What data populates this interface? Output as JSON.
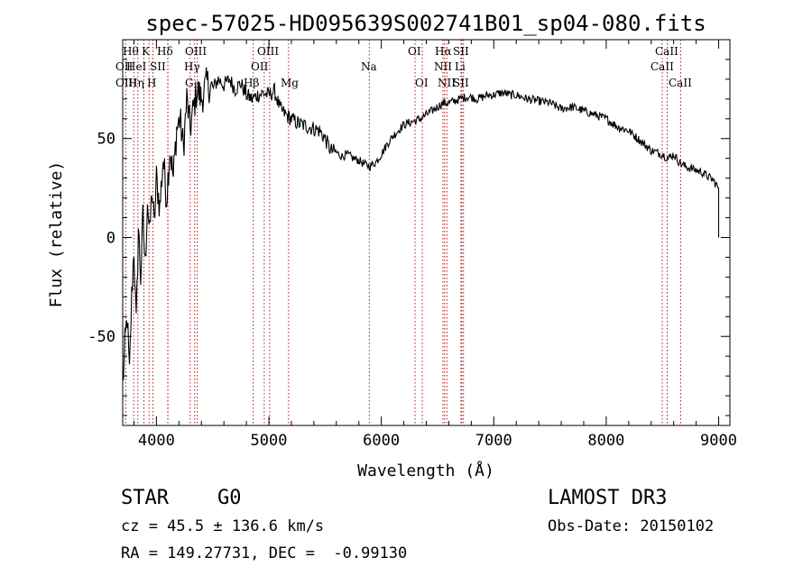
{
  "chart_data": {
    "type": "line",
    "title": "spec-57025-HD095639S002741B01_sp04-080.fits",
    "xlabel": "Wavelength (Å)",
    "ylabel": "Flux (relative)",
    "xlim": [
      3700,
      9100
    ],
    "ylim": [
      -95,
      100
    ],
    "x_ticks": [
      4000,
      5000,
      6000,
      7000,
      8000,
      9000
    ],
    "x_tick_labels": [
      "4000",
      "5000",
      "6000",
      "7000",
      "8000",
      "9000"
    ],
    "y_ticks": [
      -50,
      0,
      50
    ],
    "y_tick_labels": [
      "-50",
      "0",
      "50"
    ],
    "series": [
      {
        "name": "flux",
        "x": [
          3700,
          3720,
          3740,
          3760,
          3780,
          3800,
          3820,
          3840,
          3860,
          3880,
          3900,
          3920,
          3940,
          3960,
          3980,
          4000,
          4030,
          4060,
          4090,
          4120,
          4150,
          4180,
          4210,
          4240,
          4270,
          4300,
          4330,
          4360,
          4400,
          4450,
          4500,
          4550,
          4600,
          4650,
          4700,
          4750,
          4800,
          4850,
          4900,
          4950,
          5000,
          5050,
          5100,
          5150,
          5200,
          5250,
          5300,
          5350,
          5400,
          5450,
          5500,
          5550,
          5600,
          5650,
          5700,
          5750,
          5800,
          5850,
          5900,
          5950,
          6000,
          6050,
          6100,
          6150,
          6200,
          6250,
          6300,
          6350,
          6400,
          6450,
          6500,
          6550,
          6600,
          6650,
          6700,
          6750,
          6800,
          6850,
          6900,
          6950,
          7000,
          7050,
          7100,
          7150,
          7200,
          7300,
          7400,
          7500,
          7600,
          7700,
          7800,
          7900,
          8000,
          8100,
          8200,
          8300,
          8400,
          8450,
          8500,
          8550,
          8600,
          8650,
          8700,
          8750,
          8800,
          8850,
          8900,
          8950,
          9000
        ],
        "y": [
          -75,
          -55,
          -40,
          -70,
          -30,
          -5,
          -45,
          5,
          -20,
          10,
          -15,
          20,
          0,
          25,
          5,
          30,
          15,
          40,
          20,
          45,
          30,
          55,
          60,
          45,
          70,
          55,
          65,
          75,
          70,
          78,
          75,
          80,
          77,
          80,
          75,
          78,
          72,
          70,
          72,
          73,
          72,
          74,
          65,
          62,
          60,
          58,
          57,
          56,
          55,
          54,
          50,
          44,
          43,
          41,
          42,
          40,
          39,
          37,
          36,
          38,
          42,
          47,
          51,
          54,
          57,
          58,
          59,
          60,
          62,
          64,
          66,
          68,
          68,
          69,
          70,
          71,
          71,
          70,
          71,
          72,
          72,
          73,
          73,
          72,
          72,
          70,
          69,
          68,
          65,
          66,
          64,
          62,
          60,
          56,
          54,
          49,
          44,
          43,
          42,
          40,
          42,
          38,
          36,
          35,
          34,
          33,
          31,
          29,
          25
        ]
      }
    ],
    "line_labels": [
      {
        "label": "Hθ",
        "row": 1
      },
      {
        "label": "K",
        "row": 1
      },
      {
        "label": "Hδ",
        "row": 1
      },
      {
        "label": "OIII",
        "row": 1
      },
      {
        "label": "OIII",
        "row": 1
      },
      {
        "label": "OI",
        "row": 1
      },
      {
        "label": "Hα",
        "row": 1
      },
      {
        "label": "SII",
        "row": 1
      },
      {
        "label": "CaII",
        "row": 1
      },
      {
        "label": "OII",
        "row": 2
      },
      {
        "label": "HeI",
        "row": 2
      },
      {
        "label": "SII",
        "row": 2
      },
      {
        "label": "Hγ",
        "row": 2
      },
      {
        "label": "OII",
        "row": 2
      },
      {
        "label": "Na",
        "row": 2
      },
      {
        "label": "NII",
        "row": 2
      },
      {
        "label": "Li",
        "row": 2
      },
      {
        "label": "CaII",
        "row": 2
      },
      {
        "label": "OIII",
        "row": 3
      },
      {
        "label": "Hη",
        "row": 3
      },
      {
        "label": "H",
        "row": 3
      },
      {
        "label": "G",
        "row": 3
      },
      {
        "label": "Hβ",
        "row": 3
      },
      {
        "label": "OI",
        "row": 3
      },
      {
        "label": "NII",
        "row": 3
      },
      {
        "label": "SII",
        "row": 3
      },
      {
        "label": "CaII",
        "row": 3
      },
      {
        "label": "Mg",
        "row": 3
      }
    ]
  },
  "info": {
    "class": "STAR",
    "subclass": "G0",
    "survey": "LAMOST DR3",
    "cz": "cz = 45.5 ± 136.6 km/s",
    "obs_date": "Obs-Date: 20150102",
    "coords": "RA = 149.27731, DEC =  -0.99130"
  },
  "colors": {
    "line_marker": "#aa0000",
    "spectrum": "#000000"
  }
}
